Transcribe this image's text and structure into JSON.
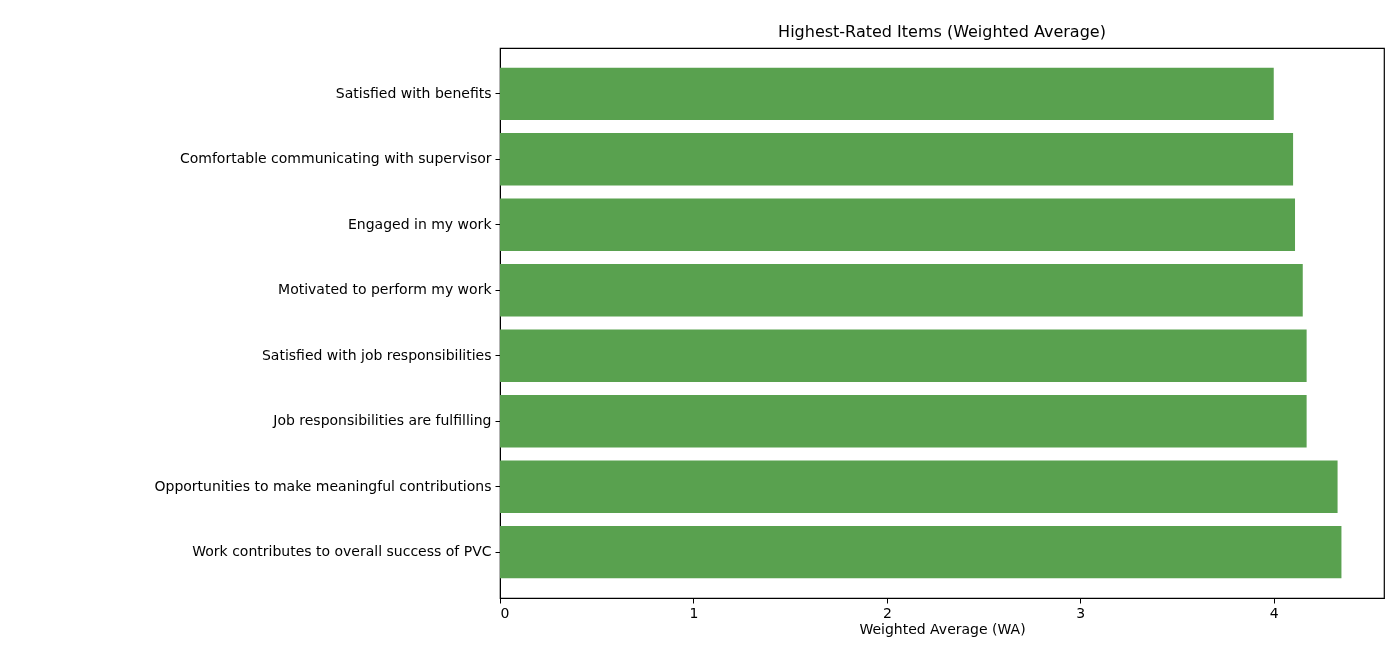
{
  "chart_data": {
    "type": "bar",
    "orientation": "horizontal",
    "title": "Highest-Rated Items (Weighted Average)",
    "xlabel": "Weighted Average (WA)",
    "categories": [
      "Satisfied with benefits",
      "Comfortable communicating with supervisor",
      "Engaged in my work",
      "Motivated to perform my work",
      "Satisfied with job responsibilities",
      "Job responsibilities are fulfilling",
      "Opportunities to make meaningful contributions",
      "Work contributes to overall success of PVC"
    ],
    "values": [
      4.0,
      4.1,
      4.11,
      4.15,
      4.17,
      4.17,
      4.33,
      4.35
    ],
    "color": "#59a14f",
    "xlim": [
      0,
      4.57
    ],
    "xticks": [
      0,
      1,
      2,
      3,
      4
    ]
  }
}
